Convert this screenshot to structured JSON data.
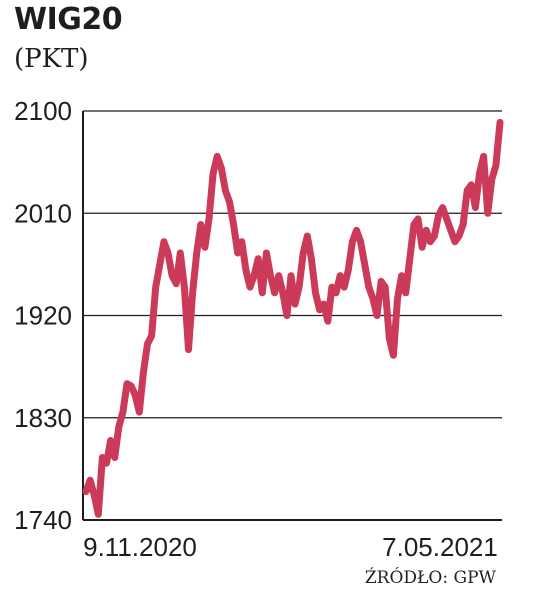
{
  "title": "WIG20",
  "subtitle": "(PKT)",
  "source": "ŹRÓDŁO: GPW",
  "colors": {
    "line": "#cc3a5a",
    "axis": "#1e1e1e",
    "grid": "#1e1e1e",
    "text": "#1e1e1e"
  },
  "chart_data": {
    "type": "line",
    "title": "WIG20",
    "ylabel": "(PKT)",
    "ylim": [
      1740,
      2100
    ],
    "yticks": [
      2100,
      2010,
      1920,
      1830,
      1740
    ],
    "xtick_labels": [
      "9.11.2020",
      "7.05.2021"
    ],
    "grid": true,
    "series": [
      {
        "values": [
          1765,
          1775,
          1762,
          1745,
          1795,
          1790,
          1810,
          1795,
          1822,
          1835,
          1860,
          1858,
          1850,
          1835,
          1870,
          1895,
          1902,
          1945,
          1965,
          1985,
          1975,
          1955,
          1948,
          1975,
          1945,
          1890,
          1940,
          1975,
          2000,
          1980,
          2005,
          2045,
          2060,
          2050,
          2030,
          2020,
          2000,
          1975,
          1985,
          1960,
          1945,
          1955,
          1970,
          1940,
          1975,
          1955,
          1940,
          1955,
          1940,
          1920,
          1955,
          1930,
          1945,
          1975,
          1990,
          1970,
          1940,
          1925,
          1930,
          1915,
          1945,
          1940,
          1955,
          1945,
          1960,
          1985,
          1995,
          1985,
          1965,
          1945,
          1935,
          1920,
          1950,
          1945,
          1900,
          1885,
          1935,
          1955,
          1940,
          1970,
          2000,
          2005,
          1980,
          1995,
          1985,
          1990,
          2008,
          2015,
          2005,
          1995,
          1985,
          1990,
          2000,
          2030,
          2035,
          2015,
          2045,
          2060,
          2010,
          2040,
          2052,
          2090
        ]
      }
    ]
  }
}
